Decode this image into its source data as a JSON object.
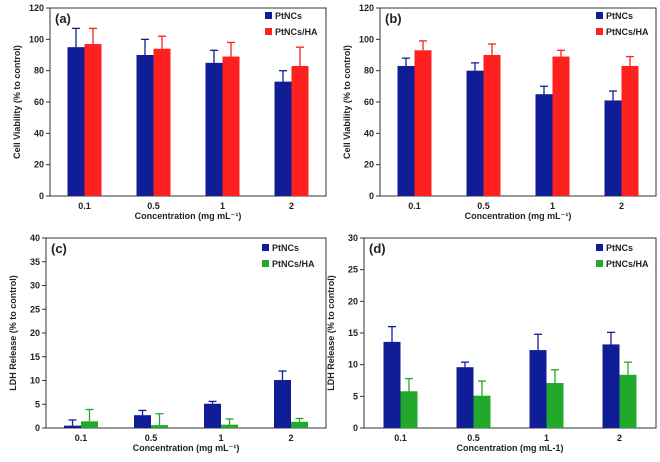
{
  "figure": {
    "description_title": "Cytotoxicity of PtNCs and PtNCs/HA"
  },
  "chart_data": [
    {
      "type": "bar",
      "panel": "(a)",
      "title": "",
      "xlabel": "Concentration (mg mL⁻¹)",
      "ylabel": "Cell Viability (% to control)",
      "categories": [
        "0.1",
        "0.5",
        "1",
        "2"
      ],
      "ylim": [
        0,
        120
      ],
      "yticks": [
        0,
        20,
        40,
        60,
        80,
        100,
        120
      ],
      "grid": false,
      "legend_position": "top-right",
      "series": [
        {
          "name": "PtNCs",
          "color": "#0f1e96",
          "values": [
            95,
            90,
            85,
            73
          ],
          "errors": [
            12,
            10,
            8,
            7
          ]
        },
        {
          "name": "PtNCs/HA",
          "color": "#ff2020",
          "values": [
            97,
            94,
            89,
            83
          ],
          "errors": [
            10,
            8,
            9,
            12
          ]
        }
      ]
    },
    {
      "type": "bar",
      "panel": "(b)",
      "title": "",
      "xlabel": "Concentration (mg mL⁻¹)",
      "ylabel": "Cell Viability (% to control)",
      "categories": [
        "0.1",
        "0.5",
        "1",
        "2"
      ],
      "ylim": [
        0,
        120
      ],
      "yticks": [
        0,
        20,
        40,
        60,
        80,
        100,
        120
      ],
      "grid": false,
      "legend_position": "top-right",
      "series": [
        {
          "name": "PtNCs",
          "color": "#0f1e96",
          "values": [
            83,
            80,
            65,
            61
          ],
          "errors": [
            5,
            5,
            5,
            6
          ]
        },
        {
          "name": "PtNCs/HA",
          "color": "#ff2020",
          "values": [
            93,
            90,
            89,
            83
          ],
          "errors": [
            6,
            7,
            4,
            6
          ]
        }
      ]
    },
    {
      "type": "bar",
      "panel": "(c)",
      "title": "",
      "xlabel": "Concentration (mg mL⁻¹)",
      "ylabel": "LDH Release (% to control)",
      "categories": [
        "0.1",
        "0.5",
        "1",
        "2"
      ],
      "ylim": [
        0,
        40
      ],
      "yticks": [
        0,
        5,
        10,
        15,
        20,
        25,
        30,
        35,
        40
      ],
      "grid": false,
      "legend_position": "top-right",
      "series": [
        {
          "name": "PtNCs",
          "color": "#0f1e96",
          "values": [
            0.5,
            2.7,
            5.1,
            10.1
          ],
          "errors": [
            1.2,
            1.0,
            0.5,
            1.9
          ]
        },
        {
          "name": "PtNCs/HA",
          "color": "#22a82a",
          "values": [
            1.4,
            0.6,
            0.7,
            1.3
          ],
          "errors": [
            2.5,
            2.4,
            1.2,
            0.7
          ]
        }
      ]
    },
    {
      "type": "bar",
      "panel": "(d)",
      "title": "",
      "xlabel": "Concentration (mg mL-1)",
      "ylabel": "LDH Release (% to control)",
      "categories": [
        "0.1",
        "0.5",
        "1",
        "2"
      ],
      "ylim": [
        0,
        30
      ],
      "yticks": [
        0,
        5,
        10,
        15,
        20,
        25,
        30
      ],
      "grid": false,
      "legend_position": "top-right",
      "series": [
        {
          "name": "PtNCs",
          "color": "#0f1e96",
          "values": [
            13.6,
            9.6,
            12.3,
            13.2
          ],
          "errors": [
            2.4,
            0.8,
            2.5,
            1.9
          ]
        },
        {
          "name": "PtNCs/HA",
          "color": "#22a82a",
          "values": [
            5.8,
            5.1,
            7.1,
            8.4
          ],
          "errors": [
            2.0,
            2.3,
            2.1,
            2.0
          ]
        }
      ]
    }
  ]
}
